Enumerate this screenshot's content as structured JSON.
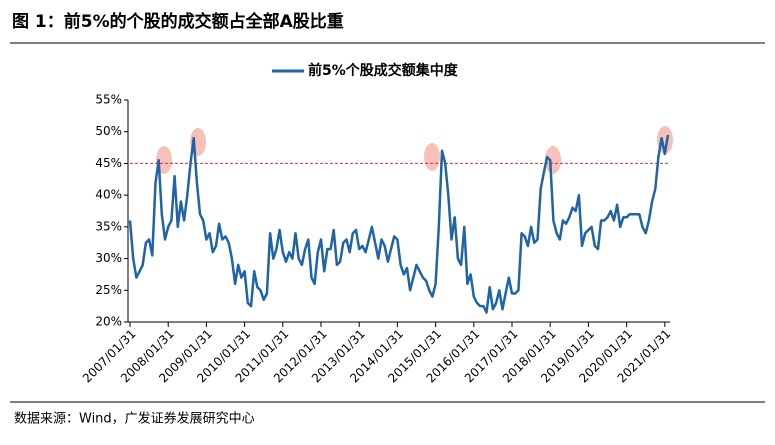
{
  "chart_data": {
    "type": "line",
    "title": "图 1：前5%的个股的成交额占全部A股比重",
    "source": "数据来源：Wind，广发证券发展研究中心",
    "categories": [
      "2007/01/31",
      null,
      null,
      null,
      null,
      null,
      null,
      null,
      null,
      null,
      null,
      null,
      "2008/01/31",
      null,
      null,
      null,
      null,
      null,
      null,
      null,
      null,
      null,
      null,
      null,
      "2009/01/31",
      null,
      null,
      null,
      null,
      null,
      null,
      null,
      null,
      null,
      null,
      null,
      "2010/01/31",
      null,
      null,
      null,
      null,
      null,
      null,
      null,
      null,
      null,
      null,
      null,
      "2011/01/31",
      null,
      null,
      null,
      null,
      null,
      null,
      null,
      null,
      null,
      null,
      null,
      "2012/01/31",
      null,
      null,
      null,
      null,
      null,
      null,
      null,
      null,
      null,
      null,
      null,
      "2013/01/31",
      null,
      null,
      null,
      null,
      null,
      null,
      null,
      null,
      null,
      null,
      null,
      "2014/01/31",
      null,
      null,
      null,
      null,
      null,
      null,
      null,
      null,
      null,
      null,
      null,
      "2015/01/31",
      null,
      null,
      null,
      null,
      null,
      null,
      null,
      null,
      null,
      null,
      null,
      "2016/01/31",
      null,
      null,
      null,
      null,
      null,
      null,
      null,
      null,
      null,
      null,
      null,
      "2017/01/31",
      null,
      null,
      null,
      null,
      null,
      null,
      null,
      null,
      null,
      null,
      null,
      "2018/01/31",
      null,
      null,
      null,
      null,
      null,
      null,
      null,
      null,
      null,
      null,
      null,
      "2019/01/31",
      null,
      null,
      null,
      null,
      null,
      null,
      null,
      null,
      null,
      null,
      null,
      "2020/01/31",
      null,
      null,
      null,
      null,
      null,
      null,
      null,
      null,
      null,
      null,
      null,
      "2021/01/31",
      null
    ],
    "series": [
      {
        "name": "前5%个股成交额集中度",
        "color": "#1f64a6",
        "values": [
          36,
          30,
          27,
          28,
          29,
          32.5,
          33,
          30.5,
          42,
          45.5,
          37,
          33,
          35,
          36,
          43,
          35,
          39,
          36,
          40,
          45,
          49,
          42,
          37,
          36,
          33,
          34,
          31,
          32,
          35.5,
          33,
          33.5,
          32.5,
          30,
          26,
          29,
          27,
          28,
          23,
          22.5,
          28,
          25.5,
          25,
          23.5,
          24.5,
          34,
          30,
          31.5,
          34.5,
          31,
          29.5,
          31,
          30,
          34,
          30,
          29,
          31.5,
          33,
          27,
          26,
          31,
          33,
          28,
          31.5,
          31.5,
          34.5,
          29,
          29.5,
          32.5,
          33,
          31,
          34,
          34.5,
          31.5,
          32,
          31,
          33,
          35,
          32.5,
          30,
          33,
          32,
          29.5,
          31.5,
          33.5,
          33,
          29,
          27.5,
          28.5,
          25,
          27,
          29,
          28,
          27,
          26.5,
          25,
          24,
          26,
          35,
          47,
          45,
          40,
          33,
          36.5,
          30,
          29,
          35,
          26,
          27.5,
          24,
          23,
          22.5,
          22.5,
          21.5,
          25.5,
          22,
          23,
          25,
          22,
          24.5,
          27,
          24.5,
          24.5,
          25,
          34,
          33.5,
          32,
          35,
          32.5,
          33,
          41,
          43.5,
          46,
          45.5,
          36,
          34,
          33,
          36,
          35.5,
          36.5,
          38,
          37.5,
          40,
          32,
          34,
          34.5,
          35,
          32,
          31.5,
          36,
          36,
          36.5,
          37.5,
          36,
          38.5,
          35,
          36.5,
          36.5,
          37,
          37,
          37,
          37,
          35,
          34,
          36,
          39,
          41,
          46,
          49,
          46.5,
          49.5
        ]
      }
    ],
    "ylim": [
      20,
      55
    ],
    "yticks": [
      {
        "value": 20,
        "label": "20%"
      },
      {
        "value": 25,
        "label": "25%"
      },
      {
        "value": 30,
        "label": "30%"
      },
      {
        "value": 35,
        "label": "35%"
      },
      {
        "value": 40,
        "label": "40%"
      },
      {
        "value": 45,
        "label": "45%"
      },
      {
        "value": 50,
        "label": "50%"
      },
      {
        "value": 55,
        "label": "55%"
      }
    ],
    "hline": {
      "value": 45,
      "color": "#e03030"
    },
    "legend": "top"
  }
}
